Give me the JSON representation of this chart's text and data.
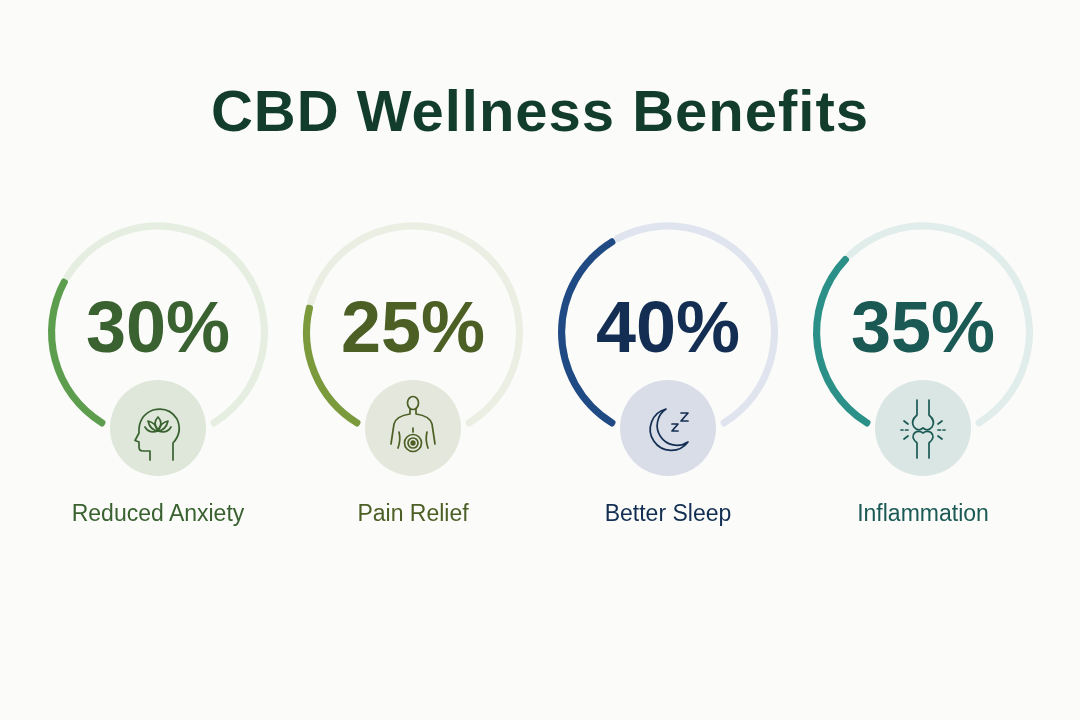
{
  "chart_data": [
    {
      "type": "other",
      "title": "CBD Wellness Benefits"
    },
    {
      "type": "donut",
      "title": "Reduced Anxiety",
      "categories": [
        null,
        null
      ],
      "values": [
        30,
        70
      ],
      "colors": [
        "#5c9e4e",
        "#e5eee1"
      ],
      "annotations": [
        "30%"
      ]
    },
    {
      "type": "donut",
      "title": "Pain Relief",
      "categories": [
        null,
        null
      ],
      "values": [
        25,
        75
      ],
      "colors": [
        "#7a9a3c",
        "#ebeee3"
      ],
      "annotations": [
        "25%"
      ]
    },
    {
      "type": "donut",
      "title": "Better Sleep",
      "categories": [
        null,
        null
      ],
      "values": [
        40,
        60
      ],
      "colors": [
        "#1f4a84",
        "#dfe4ee"
      ],
      "annotations": [
        "40%"
      ]
    },
    {
      "type": "donut",
      "title": "Inflammation",
      "categories": [
        null,
        null
      ],
      "values": [
        35,
        65
      ],
      "colors": [
        "#2a9088",
        "#e0edeb"
      ],
      "annotations": [
        "35%"
      ]
    }
  ]
}
